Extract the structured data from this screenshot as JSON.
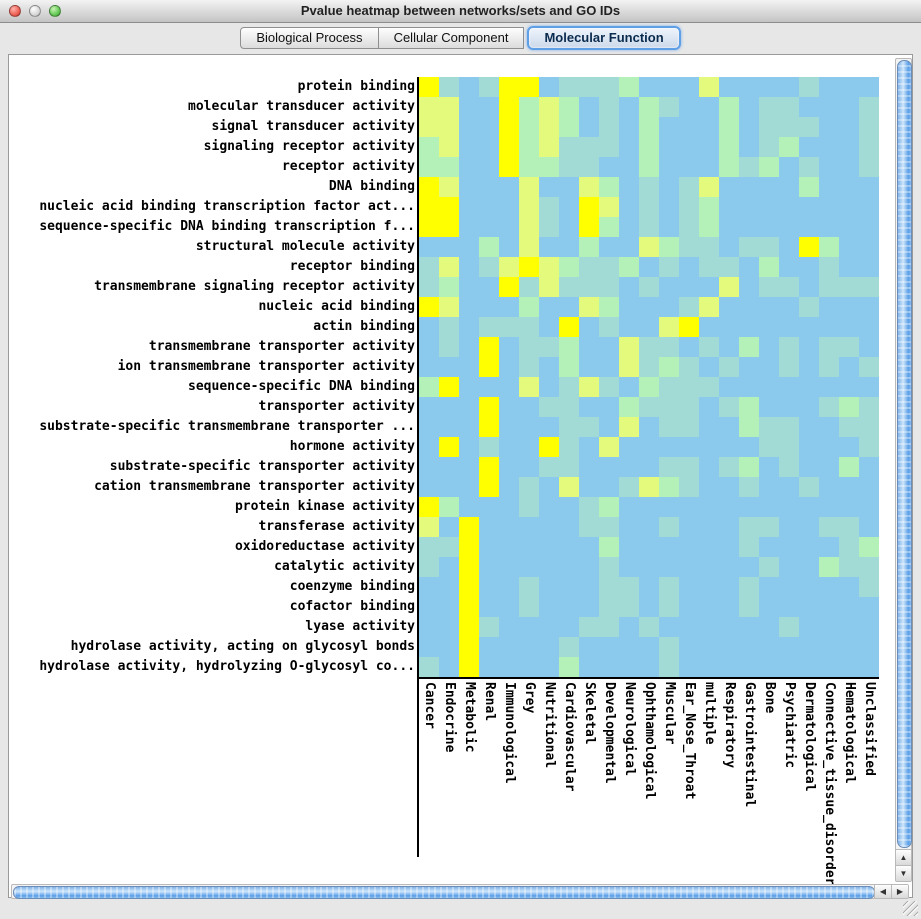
{
  "window": {
    "title": "Pvalue heatmap between networks/sets and GO IDs"
  },
  "tabs": [
    {
      "label": "Biological Process",
      "selected": false
    },
    {
      "label": "Cellular Component",
      "selected": false
    },
    {
      "label": "Molecular Function",
      "selected": true
    }
  ],
  "heatmap": {
    "row_labels": [
      "protein binding",
      "molecular transducer activity",
      "signal transducer activity",
      "signaling receptor activity",
      "receptor activity",
      "DNA binding",
      "nucleic acid binding transcription factor act...",
      "sequence-specific DNA binding transcription f...",
      "structural molecule activity",
      "receptor binding",
      "transmembrane signaling receptor activity",
      "nucleic acid binding",
      "actin binding",
      "transmembrane transporter activity",
      "ion transmembrane transporter activity",
      "sequence-specific DNA binding",
      "transporter activity",
      "substrate-specific transmembrane transporter ...",
      "hormone activity",
      "substrate-specific transporter activity",
      "cation transmembrane transporter activity",
      "protein kinase activity",
      "transferase activity",
      "oxidoreductase activity",
      "catalytic activity",
      "coenzyme binding",
      "cofactor binding",
      "lyase activity",
      "hydrolase activity, acting on glycosyl bonds",
      "hydrolase activity, hydrolyzing O-glycosyl co..."
    ],
    "col_labels": [
      "Cancer",
      "Endocrine",
      "Metabolic",
      "Renal",
      "Immunological",
      "Grey",
      "Nutritional",
      "Cardiovascular",
      "Skeletal",
      "Developmental",
      "Neurological",
      "Ophthamological",
      "Muscular",
      "Ear_Nose_Throat",
      "multiple",
      "Respiratory",
      "Gastrointestinal",
      "Bone",
      "Psychiatric",
      "Dermatological",
      "Connective_tissue_disorder",
      "Hematological",
      "Unclassified"
    ],
    "palette": [
      "#8BCAEC",
      "#A2DBD5",
      "#B4F1B9",
      "#E4FA7D",
      "#FFFF00"
    ],
    "cells": [
      "41014401112000300001000",
      "33004232010210020110001",
      "33004232010200020111001",
      "23004231110200020120001",
      "22004221100200021201001",
      "43000300320101300002000",
      "44000310430101200000000",
      "44000310420101200000000",
      "00020300200321101104200",
      "13013432112010110200100",
      "12004131110100030110111",
      "43000200320001300001000",
      "01011104010034000000000",
      "01040112003110102010110",
      "00040102003121010010101",
      "24000301310211100000000",
      "00040011002111012000121",
      "00040001103011002110011",
      "04010041030000000110001",
      "00040011000011012010020",
      "00040103001321001001000",
      "42000100120000000000000",
      "30400000110010001100110",
      "11400000020000001000012",
      "10400000010000000100211",
      "00400100011010001000001",
      "00400100011010001000000",
      "00410000110100000010000",
      "00400001000010000000000",
      "10400002000010000000000"
    ]
  },
  "chart_data": {
    "type": "heatmap",
    "title": "Pvalue heatmap between networks/sets and GO IDs",
    "x_categories": [
      "Cancer",
      "Endocrine",
      "Metabolic",
      "Renal",
      "Immunological",
      "Grey",
      "Nutritional",
      "Cardiovascular",
      "Skeletal",
      "Developmental",
      "Neurological",
      "Ophthamological",
      "Muscular",
      "Ear_Nose_Throat",
      "multiple",
      "Respiratory",
      "Gastrointestinal",
      "Bone",
      "Psychiatric",
      "Dermatological",
      "Connective_tissue_disorder",
      "Hematological",
      "Unclassified"
    ],
    "value_scale": "0=low significance (blue) .. 4=high significance (yellow)",
    "legend_position": "none",
    "grid": false
  },
  "colors": {
    "selected_tab_ring": "#5F9FE6",
    "scrollbar_thumb_blue": "#5A9FE8",
    "heatmap_low": "#8BCAEC",
    "heatmap_high": "#FFFF00"
  },
  "icons": {
    "scroll_left_icon": "◀",
    "scroll_right_icon": "▶",
    "scroll_down_icon": "▼",
    "scroll_up_icon": "▲"
  }
}
